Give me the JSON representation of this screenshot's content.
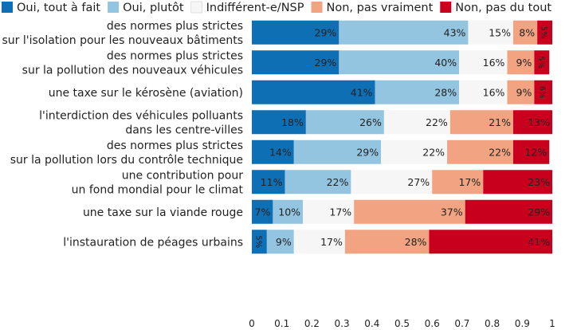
{
  "chart_data": {
    "type": "bar",
    "orientation": "horizontal",
    "stacked": true,
    "legend_position": "top",
    "xlim": [
      0,
      1
    ],
    "x_ticks": [
      "0",
      "0.1",
      "0.2",
      "0.3",
      "0.4",
      "0.5",
      "0.6",
      "0.7",
      "0.8",
      "0.9",
      "1"
    ],
    "grid": false,
    "categories": [
      [
        "des normes plus strictes",
        "sur l'isolation pour les nouveaux bâtiments"
      ],
      [
        "des normes plus strictes",
        "sur la pollution des nouveaux véhicules"
      ],
      [
        "une taxe sur le kérosène (aviation)"
      ],
      [
        "l'interdiction des véhicules polluants",
        "dans les centre-villes"
      ],
      [
        "des normes plus strictes",
        "sur la pollution lors du contrôle technique"
      ],
      [
        "une contribution pour",
        "un fond mondial pour le climat"
      ],
      [
        "une taxe sur la viande rouge"
      ],
      [
        "l'instauration de péages urbains"
      ]
    ],
    "series": [
      {
        "name": "Oui, tout à fait",
        "color": "#0f6fb4",
        "values": [
          0.29,
          0.29,
          0.41,
          0.18,
          0.14,
          0.11,
          0.07,
          0.05
        ],
        "labels": [
          "29%",
          "29%",
          "41%",
          "18%",
          "14%",
          "11%",
          "7%",
          "5%"
        ]
      },
      {
        "name": "Oui, plutôt",
        "color": "#93c4e0",
        "values": [
          0.43,
          0.4,
          0.28,
          0.26,
          0.29,
          0.22,
          0.1,
          0.09
        ],
        "labels": [
          "43%",
          "40%",
          "28%",
          "26%",
          "29%",
          "22%",
          "10%",
          "9%"
        ]
      },
      {
        "name": "Indifférent-e/NSP",
        "color": "#f6f6f6",
        "values": [
          0.15,
          0.16,
          0.16,
          0.22,
          0.22,
          0.27,
          0.17,
          0.17
        ],
        "labels": [
          "15%",
          "16%",
          "16%",
          "22%",
          "22%",
          "27%",
          "17%",
          "17%"
        ]
      },
      {
        "name": "Non, pas vraiment",
        "color": "#f2a482",
        "values": [
          0.08,
          0.09,
          0.09,
          0.21,
          0.22,
          0.17,
          0.37,
          0.28
        ],
        "labels": [
          "8%",
          "9%",
          "9%",
          "21%",
          "22%",
          "17%",
          "37%",
          "28%"
        ]
      },
      {
        "name": "Non, pas du tout",
        "color": "#c8001e",
        "values": [
          0.05,
          0.05,
          0.06,
          0.13,
          0.12,
          0.23,
          0.29,
          0.41
        ],
        "labels": [
          "5%",
          "5%",
          "6%",
          "13%",
          "12%",
          "23%",
          "29%",
          "41%"
        ]
      }
    ]
  }
}
